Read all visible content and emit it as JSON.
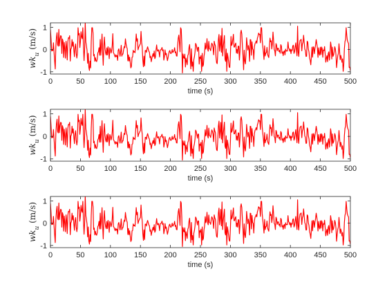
{
  "figure": {
    "panels_xlabel": "time (s)",
    "panels_ylabel": "wk_u (m/s)"
  },
  "chart_data": [
    {
      "type": "line",
      "xlabel": "time (s)",
      "ylabel": "wk_u (m/s)",
      "xlim": [
        0,
        500
      ],
      "ylim": [
        -1.1,
        1.2
      ],
      "xticks": [
        0,
        50,
        100,
        150,
        200,
        250,
        300,
        350,
        400,
        450,
        500
      ],
      "yticks": [
        -1,
        0,
        1
      ],
      "grid": false,
      "color": "#ff0000",
      "seed": 7,
      "n_points": 500,
      "spikes": [
        {
          "x": 58,
          "y": 1.2
        },
        {
          "x": 220,
          "y": -1.05
        },
        {
          "x": 412,
          "y": 1.05
        }
      ]
    },
    {
      "type": "line",
      "xlabel": "time (s)",
      "ylabel": "wk_u (m/s)",
      "xlim": [
        0,
        500
      ],
      "ylim": [
        -1.1,
        1.2
      ],
      "xticks": [
        0,
        50,
        100,
        150,
        200,
        250,
        300,
        350,
        400,
        450,
        500
      ],
      "yticks": [
        -1,
        0,
        1
      ],
      "grid": false,
      "color": "#ff0000",
      "seed": 7,
      "n_points": 500,
      "spikes": [
        {
          "x": 58,
          "y": 1.2
        },
        {
          "x": 220,
          "y": -1.05
        },
        {
          "x": 412,
          "y": 1.05
        }
      ]
    },
    {
      "type": "line",
      "xlabel": "time (s)",
      "ylabel": "wk_u (m/s)",
      "xlim": [
        0,
        500
      ],
      "ylim": [
        -1.1,
        1.2
      ],
      "xticks": [
        0,
        50,
        100,
        150,
        200,
        250,
        300,
        350,
        400,
        450,
        500
      ],
      "yticks": [
        -1,
        0,
        1
      ],
      "grid": false,
      "color": "#ff0000",
      "seed": 7,
      "n_points": 500,
      "spikes": [
        {
          "x": 58,
          "y": 1.2
        },
        {
          "x": 220,
          "y": -1.05
        },
        {
          "x": 412,
          "y": 1.05
        }
      ]
    }
  ]
}
